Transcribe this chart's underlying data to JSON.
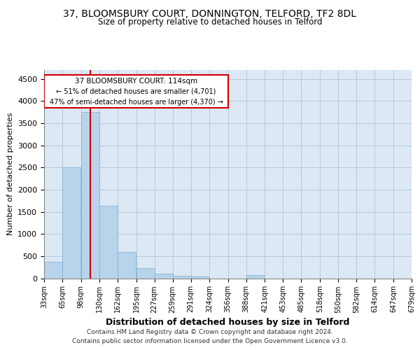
{
  "title": "37, BLOOMSBURY COURT, DONNINGTON, TELFORD, TF2 8DL",
  "subtitle": "Size of property relative to detached houses in Telford",
  "xlabel": "Distribution of detached houses by size in Telford",
  "ylabel": "Number of detached properties",
  "footer_line1": "Contains HM Land Registry data © Crown copyright and database right 2024.",
  "footer_line2": "Contains public sector information licensed under the Open Government Licence v3.0.",
  "bar_color": "#b8d4ea",
  "bar_edge_color": "#7aafd4",
  "background_color": "#dce8f4",
  "grid_color": "#b8c8dc",
  "annotation_box_color": "#cc0000",
  "property_line_color": "#cc0000",
  "property_sqm": 114,
  "annotation_text_line1": "37 BLOOMSBURY COURT: 114sqm",
  "annotation_text_line2": "← 51% of detached houses are smaller (4,701)",
  "annotation_text_line3": "47% of semi-detached houses are larger (4,370) →",
  "bins": [
    33,
    65,
    98,
    130,
    162,
    195,
    227,
    259,
    291,
    324,
    356,
    388,
    421,
    453,
    485,
    518,
    550,
    582,
    614,
    647,
    679
  ],
  "bin_labels": [
    "33sqm",
    "65sqm",
    "98sqm",
    "130sqm",
    "162sqm",
    "195sqm",
    "227sqm",
    "259sqm",
    "291sqm",
    "324sqm",
    "356sqm",
    "388sqm",
    "421sqm",
    "453sqm",
    "485sqm",
    "518sqm",
    "550sqm",
    "582sqm",
    "614sqm",
    "647sqm",
    "679sqm"
  ],
  "bar_heights": [
    370,
    2500,
    3750,
    1640,
    590,
    225,
    105,
    60,
    40,
    0,
    0,
    65,
    0,
    0,
    0,
    0,
    0,
    0,
    0,
    0
  ],
  "ylim": [
    0,
    4700
  ],
  "yticks": [
    0,
    500,
    1000,
    1500,
    2000,
    2500,
    3000,
    3500,
    4000,
    4500
  ]
}
